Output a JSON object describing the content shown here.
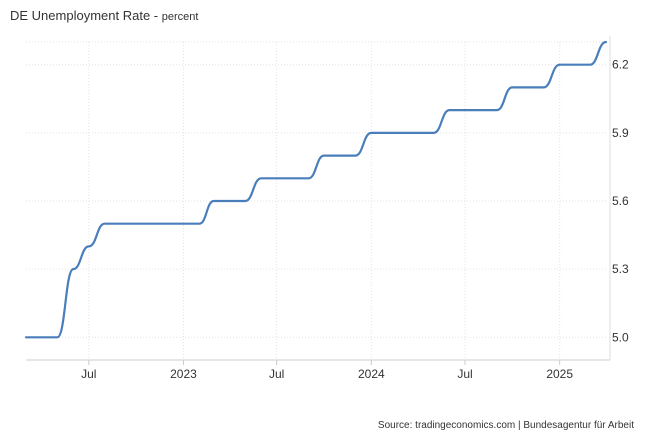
{
  "header": {
    "title": "DE Unemployment Rate",
    "unit": "percent"
  },
  "footer": {
    "source": "Source: tradingeconomics.com | Bundesagentur für Arbeit"
  },
  "colors": {
    "line": "#4a7ebb",
    "grid": "#e3e3e3",
    "text": "#333333"
  },
  "chart_data": {
    "type": "line",
    "title": "DE Unemployment Rate",
    "ylabel": "percent",
    "xlabel": "",
    "x_ticks": [
      "Jul",
      "2023",
      "Jul",
      "2024",
      "Jul",
      "2025"
    ],
    "x_tick_dates": [
      "2022-07-01",
      "2023-01-01",
      "2023-07-01",
      "2024-01-01",
      "2024-07-01",
      "2025-01-01"
    ],
    "y_ticks": [
      "5.0",
      "5.3",
      "5.6",
      "5.9",
      "6.2"
    ],
    "y_tick_values": [
      5.0,
      5.3,
      5.6,
      5.9,
      6.2
    ],
    "ylim": [
      4.9,
      6.3
    ],
    "xlim": [
      "2022-03-01",
      "2025-04-01"
    ],
    "grid": true,
    "legend": "none",
    "series": [
      {
        "x": [
          "2022-03-01",
          "2022-04-01",
          "2022-05-01",
          "2022-06-01",
          "2022-07-01",
          "2022-08-01",
          "2022-09-01",
          "2022-10-01",
          "2022-11-01",
          "2022-12-01",
          "2023-01-01",
          "2023-02-01",
          "2023-03-01",
          "2023-04-01",
          "2023-05-01",
          "2023-06-01",
          "2023-07-01",
          "2023-08-01",
          "2023-09-01",
          "2023-10-01",
          "2023-11-01",
          "2023-12-01",
          "2024-01-01",
          "2024-02-01",
          "2024-03-01",
          "2024-04-01",
          "2024-05-01",
          "2024-06-01",
          "2024-07-01",
          "2024-08-01",
          "2024-09-01",
          "2024-10-01",
          "2024-11-01",
          "2024-12-01",
          "2025-01-01",
          "2025-02-01",
          "2025-03-01",
          "2025-04-01"
        ],
        "y": [
          5.0,
          5.0,
          5.0,
          5.3,
          5.4,
          5.5,
          5.5,
          5.5,
          5.5,
          5.5,
          5.5,
          5.5,
          5.6,
          5.6,
          5.6,
          5.7,
          5.7,
          5.7,
          5.7,
          5.8,
          5.8,
          5.8,
          5.9,
          5.9,
          5.9,
          5.9,
          5.9,
          6.0,
          6.0,
          6.0,
          6.0,
          6.1,
          6.1,
          6.1,
          6.2,
          6.2,
          6.2,
          6.3
        ]
      }
    ]
  }
}
